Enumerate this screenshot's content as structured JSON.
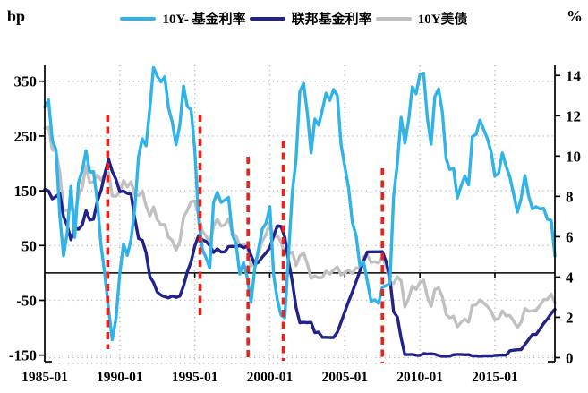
{
  "chart_data": {
    "type": "line",
    "title": "",
    "left_axis": {
      "unit": "bp",
      "ticks": [
        350,
        250,
        150,
        50,
        -50,
        -150
      ],
      "range": [
        -162,
        379
      ]
    },
    "right_axis": {
      "unit": "%",
      "ticks": [
        14,
        12,
        10,
        8,
        6,
        4,
        2,
        0
      ],
      "range": [
        -0.2,
        14.5
      ]
    },
    "x_axis": {
      "tick_labels": [
        "1985-01",
        "1990-01",
        "1995-01",
        "2000-01",
        "2005-01",
        "2010-01",
        "2015-01"
      ],
      "tick_years": [
        1985,
        1990,
        1995,
        2000,
        2005,
        2010,
        2015
      ],
      "range": [
        1985,
        2019
      ]
    },
    "x_start_year": 1985.0,
    "x_step_years": 0.25,
    "grid": {
      "horizontal_dotted": true,
      "vertical_dotted": true,
      "color": "#bbbbbb"
    },
    "zero_line_left_value": 0,
    "vertical_markers": {
      "color": "#ee2017",
      "style": "dashed",
      "x_years": [
        1989.2,
        1995.35,
        1998.55,
        2000.9,
        2007.5
      ]
    },
    "series": [
      {
        "name": "10Y- 基金利率",
        "axis": "left",
        "color": "#2fb3e8",
        "values": [
          303,
          316,
          243,
          225,
          105,
          31,
          74,
          158,
          65,
          165,
          187,
          223,
          184,
          185,
          131,
          50,
          -3,
          -66,
          -122,
          -83,
          -2,
          53,
          32,
          61,
          118,
          213,
          245,
          232,
          300,
          375,
          359,
          349,
          358,
          301,
          275,
          234,
          270,
          341,
          304,
          298,
          225,
          101,
          43,
          28,
          9,
          129,
          147,
          129,
          133,
          138,
          70,
          53,
          -2,
          19,
          -8,
          -54,
          9,
          44,
          80,
          91,
          121,
          -3,
          -49,
          -77,
          -82,
          34,
          147,
          208,
          331,
          346,
          292,
          219,
          281,
          270,
          297,
          328,
          315,
          335,
          324,
          234,
          194,
          155,
          92,
          68,
          13,
          20,
          -15,
          -52,
          -49,
          -56,
          -26,
          -23,
          -20,
          140,
          200,
          284,
          237,
          278,
          340,
          327,
          362,
          365,
          283,
          235,
          322,
          336,
          293,
          208,
          189,
          191,
          137,
          159,
          177,
          161,
          249,
          253,
          279,
          262,
          245,
          221,
          177,
          182,
          219,
          195,
          175,
          144,
          111,
          136,
          178,
          140,
          117,
          121,
          117,
          118,
          98,
          96,
          31
        ]
      },
      {
        "name": "联邦基金利率",
        "axis": "right",
        "color": "#23228a",
        "values": [
          8.35,
          8.27,
          7.88,
          7.99,
          8.14,
          6.99,
          6.56,
          5.85,
          6.43,
          6.37,
          6.58,
          7.29,
          6.83,
          6.87,
          7.75,
          8.3,
          9.12,
          9.84,
          9.24,
          8.84,
          8.23,
          8.26,
          8.15,
          8.11,
          6.91,
          5.91,
          5.82,
          5.21,
          4.03,
          3.73,
          3.25,
          3.1,
          3.02,
          2.96,
          3.06,
          2.99,
          3.05,
          3.56,
          4.26,
          4.76,
          5.53,
          6.05,
          5.85,
          5.76,
          5.56,
          5.22,
          5.4,
          5.24,
          5.25,
          5.51,
          5.52,
          5.5,
          5.56,
          5.45,
          5.54,
          5.07,
          4.63,
          4.74,
          4.99,
          5.2,
          5.45,
          6.02,
          6.54,
          6.51,
          5.98,
          4.8,
          3.77,
          2.49,
          1.73,
          1.75,
          1.73,
          1.75,
          1.24,
          1.26,
          1.01,
          1.01,
          1.0,
          1.0,
          1.26,
          1.76,
          2.28,
          2.79,
          3.26,
          3.78,
          4.29,
          4.79,
          5.24,
          5.25,
          5.25,
          5.25,
          5.26,
          4.76,
          3.94,
          2.28,
          2.01,
          0.97,
          0.15,
          0.15,
          0.16,
          0.12,
          0.11,
          0.2,
          0.18,
          0.19,
          0.17,
          0.1,
          0.07,
          0.07,
          0.08,
          0.14,
          0.16,
          0.16,
          0.14,
          0.15,
          0.09,
          0.09,
          0.07,
          0.09,
          0.09,
          0.09,
          0.11,
          0.12,
          0.13,
          0.12,
          0.34,
          0.37,
          0.39,
          0.4,
          0.65,
          0.9,
          1.15,
          1.15,
          1.41,
          1.69,
          1.91,
          2.19,
          2.4
        ]
      },
      {
        "name": "10Y美债",
        "axis": "right",
        "color": "#c0c0c0",
        "values": [
          11.38,
          11.43,
          10.31,
          10.24,
          9.19,
          7.3,
          7.3,
          7.43,
          7.08,
          8.02,
          8.45,
          9.52,
          8.67,
          8.72,
          9.06,
          8.8,
          9.09,
          9.18,
          8.02,
          8.01,
          8.21,
          8.79,
          8.47,
          8.72,
          8.09,
          8.04,
          8.27,
          7.53,
          7.03,
          7.48,
          6.84,
          6.59,
          6.6,
          5.97,
          5.81,
          5.33,
          5.75,
          6.97,
          7.3,
          7.74,
          7.78,
          7.06,
          6.28,
          6.04,
          5.65,
          6.51,
          6.87,
          6.53,
          6.58,
          6.89,
          6.22,
          6.03,
          5.54,
          5.64,
          5.46,
          4.53,
          4.72,
          5.18,
          5.79,
          6.11,
          6.66,
          5.99,
          6.05,
          5.74,
          5.16,
          5.14,
          5.24,
          4.57,
          5.04,
          5.21,
          4.65,
          3.94,
          4.05,
          3.96,
          3.98,
          4.29,
          4.15,
          4.35,
          4.5,
          4.1,
          4.22,
          4.34,
          4.18,
          4.46,
          4.42,
          4.99,
          5.09,
          4.73,
          4.76,
          4.69,
          5.0,
          4.53,
          3.74,
          3.68,
          4.01,
          3.81,
          2.52,
          2.93,
          3.56,
          3.39,
          3.73,
          3.85,
          3.01,
          2.54,
          3.39,
          3.46,
          3.0,
          2.15,
          1.97,
          2.05,
          1.53,
          1.75,
          1.91,
          1.76,
          2.58,
          2.62,
          2.86,
          2.71,
          2.54,
          2.3,
          1.88,
          1.94,
          2.32,
          2.07,
          2.09,
          1.81,
          1.5,
          1.76,
          2.43,
          2.3,
          2.32,
          2.36,
          2.58,
          2.87,
          2.89,
          3.15,
          2.71
        ]
      }
    ],
    "legend_position": "top-center"
  }
}
